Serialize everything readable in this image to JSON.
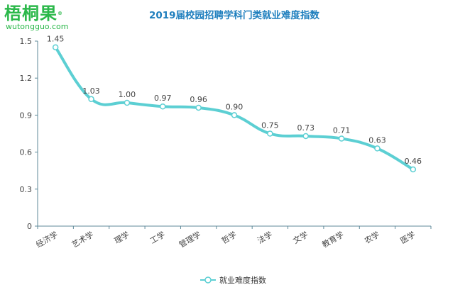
{
  "logo": {
    "text": "梧桐果",
    "reg": "®",
    "url": "wutongguo.com"
  },
  "chart_data": {
    "type": "line",
    "title": "2019届校园招聘学科门类就业难度指数",
    "categories": [
      "经济学",
      "艺术学",
      "理学",
      "工学",
      "管理学",
      "哲学",
      "法学",
      "文学",
      "教育学",
      "农学",
      "医学"
    ],
    "series": [
      {
        "name": "就业难度指数",
        "values": [
          1.45,
          1.03,
          1.0,
          0.97,
          0.96,
          0.9,
          0.75,
          0.73,
          0.71,
          0.63,
          0.46
        ]
      }
    ],
    "data_labels": [
      "1.45",
      "1.03",
      "1.00",
      "0.97",
      "0.96",
      "0.90",
      "0.75",
      "0.73",
      "0.71",
      "0.63",
      "0.46"
    ],
    "ylim": [
      0,
      1.5
    ],
    "yticks": [
      "0",
      "0.3",
      "0.6",
      "0.9",
      "1.2",
      "1.5"
    ],
    "xlabel": "",
    "ylabel": "",
    "grid": false,
    "smooth": true,
    "legend_position": "bottom",
    "colors": {
      "line": "#5ccfd3",
      "axis": "#5f8a9a",
      "title": "#1f7fbe",
      "logo": "#2bb84a"
    }
  }
}
